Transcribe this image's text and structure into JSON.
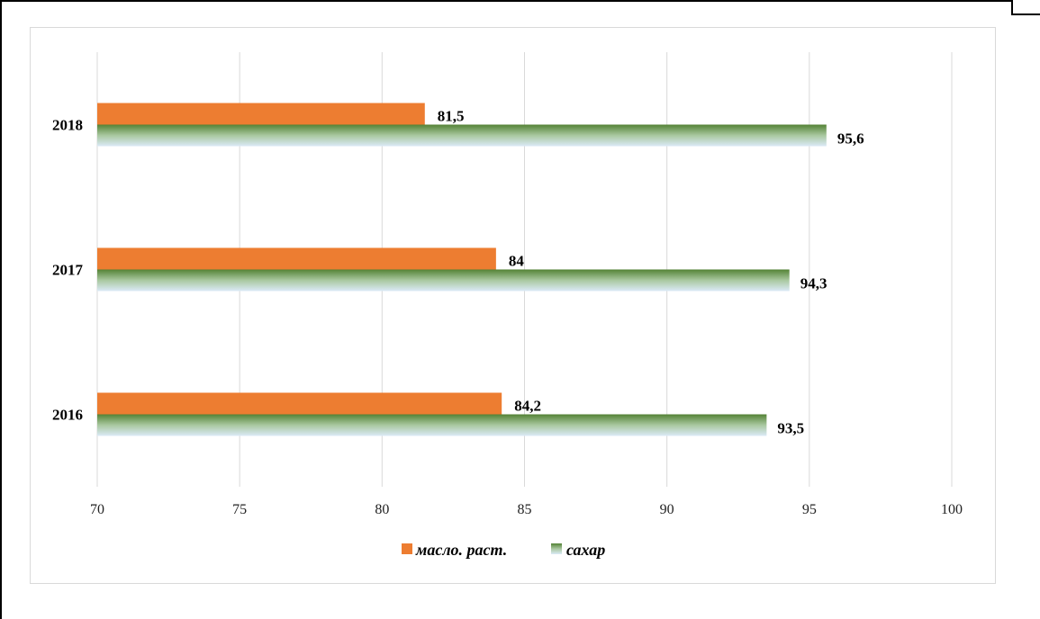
{
  "chart_data": {
    "type": "bar",
    "orientation": "horizontal",
    "categories": [
      "2016",
      "2017",
      "2018"
    ],
    "series": [
      {
        "name": "масло. раст.",
        "values": [
          84.2,
          84,
          81.5
        ],
        "labels": [
          "84,2",
          "84",
          "81,5"
        ],
        "color": "#ed7d31"
      },
      {
        "name": "сахар",
        "values": [
          93.5,
          94.3,
          95.6
        ],
        "labels": [
          "93,5",
          "94,3",
          "95,6"
        ],
        "color_top": "#548235",
        "color_bottom": "#dbeaf7"
      }
    ],
    "xlim": [
      70,
      100
    ],
    "xticks": [
      "70",
      "75",
      "80",
      "85",
      "90",
      "95",
      "100"
    ],
    "grid": true,
    "legend_position": "bottom"
  }
}
